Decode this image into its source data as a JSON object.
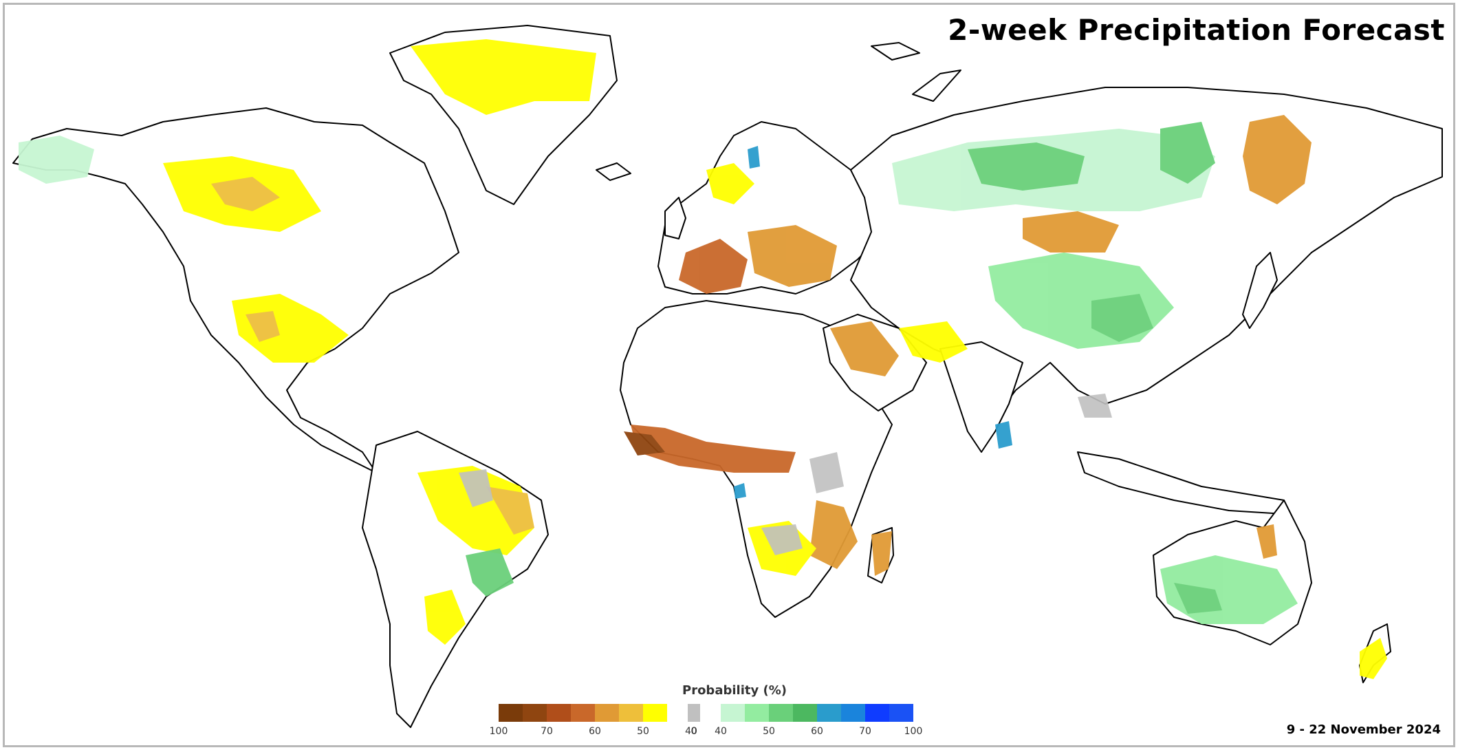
{
  "title": "2-week Precipitation Forecast",
  "date_range": "9 - 22 November 2024",
  "legend": {
    "title": "Probability (%)",
    "dry_colors": [
      "#7a3b0a",
      "#8f4510",
      "#b04e1a",
      "#c9682a",
      "#e09a35",
      "#eebf3a",
      "#ffff00"
    ],
    "neutral_color": "#c0c0c0",
    "wet_colors": [
      "#c6f5d2",
      "#93eca0",
      "#6ad07a",
      "#4cb860",
      "#2a9ccc",
      "#1a84dc",
      "#0f3cff",
      "#1a52f5"
    ],
    "dry_ticks": [
      "100",
      "70",
      "60",
      "50",
      "40"
    ],
    "neutral_tick": "0",
    "wet_ticks": [
      "40",
      "50",
      "60",
      "70",
      "100"
    ]
  }
}
